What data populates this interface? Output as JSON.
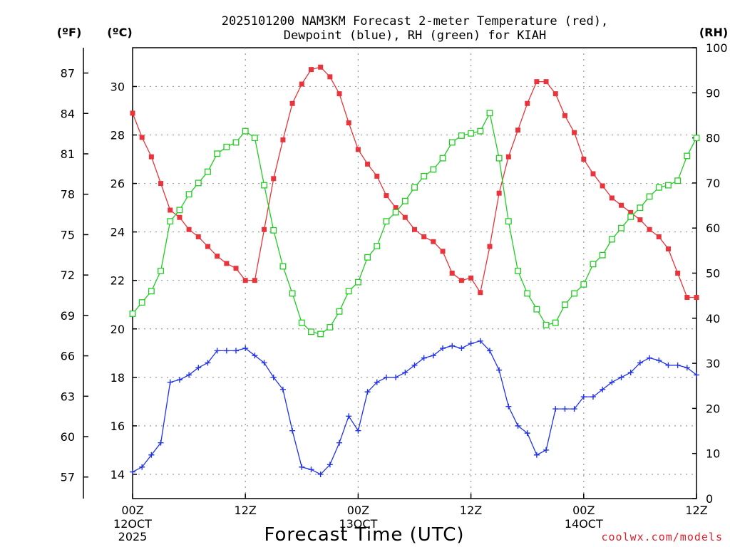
{
  "chart_data": {
    "type": "line",
    "title_line1": "2025101200 NAM3KM Forecast 2-meter Temperature (red),",
    "title_line2": "Dewpoint (blue), RH (green) for KIAH",
    "xlabel": "Forecast Time (UTC)",
    "credit": "coolwx.com/models",
    "units": {
      "fahrenheit": "(ºF)",
      "celsius": "(ºC)",
      "rh": "(RH)"
    },
    "x_range_hours": [
      0,
      60
    ],
    "celsius_range": [
      13.0,
      31.6
    ],
    "rh_range": [
      0,
      100
    ],
    "fahrenheit_ticks": [
      57,
      60,
      63,
      66,
      69,
      72,
      75,
      78,
      81,
      84,
      87
    ],
    "celsius_ticks": [
      14,
      16,
      18,
      20,
      22,
      24,
      26,
      28,
      30
    ],
    "rh_ticks": [
      0,
      10,
      20,
      30,
      40,
      50,
      60,
      70,
      80,
      90,
      100
    ],
    "x_ticks": [
      {
        "hour": 0,
        "label": "00Z",
        "sub1": "12OCT",
        "sub2": "2025"
      },
      {
        "hour": 12,
        "label": "12Z",
        "sub1": "",
        "sub2": ""
      },
      {
        "hour": 24,
        "label": "00Z",
        "sub1": "13OCT",
        "sub2": ""
      },
      {
        "hour": 36,
        "label": "12Z",
        "sub1": "",
        "sub2": ""
      },
      {
        "hour": 48,
        "label": "00Z",
        "sub1": "14OCT",
        "sub2": ""
      },
      {
        "hour": 60,
        "label": "12Z",
        "sub1": "",
        "sub2": ""
      }
    ],
    "colors": {
      "temperature": "#e8343a",
      "dewpoint": "#2233e8",
      "rh": "#22cc22",
      "grid": "#999999"
    },
    "series": [
      {
        "name": "Temperature",
        "units": "C",
        "color": "#e8343a",
        "marker": "filled-square",
        "values": [
          28.9,
          27.9,
          27.1,
          26.0,
          24.9,
          24.6,
          24.1,
          23.8,
          23.4,
          23.0,
          22.7,
          22.5,
          22.0,
          22.0,
          24.1,
          26.2,
          27.8,
          29.3,
          30.1,
          30.7,
          30.8,
          30.4,
          29.7,
          28.5,
          27.4,
          26.8,
          26.3,
          25.5,
          25.0,
          24.6,
          24.1,
          23.8,
          23.6,
          23.2,
          22.3,
          22.0,
          22.1,
          21.5,
          23.4,
          25.6,
          27.1,
          28.2,
          29.3,
          30.2,
          30.2,
          29.7,
          28.8,
          28.1,
          27.0,
          26.4,
          25.9,
          25.4,
          25.1,
          24.8,
          24.5,
          24.1,
          23.8,
          23.3,
          22.3,
          21.3,
          21.3
        ]
      },
      {
        "name": "Dewpoint",
        "units": "C",
        "color": "#2233e8",
        "marker": "plus",
        "values": [
          14.1,
          14.3,
          14.8,
          15.3,
          17.8,
          17.9,
          18.1,
          18.4,
          18.6,
          19.1,
          19.1,
          19.1,
          19.2,
          18.9,
          18.6,
          18.0,
          17.5,
          15.8,
          14.3,
          14.2,
          14.0,
          14.4,
          15.3,
          16.4,
          15.8,
          17.4,
          17.8,
          18.0,
          18.0,
          18.2,
          18.5,
          18.8,
          18.9,
          19.2,
          19.3,
          19.2,
          19.4,
          19.5,
          19.1,
          18.3,
          16.8,
          16.0,
          15.7,
          14.8,
          15.0,
          16.7,
          16.7,
          16.7,
          17.2,
          17.2,
          17.5,
          17.8,
          18.0,
          18.2,
          18.6,
          18.8,
          18.7,
          18.5,
          18.5,
          18.4,
          18.1
        ]
      },
      {
        "name": "RH",
        "units": "%",
        "color": "#22cc22",
        "marker": "open-square",
        "values": [
          41,
          43.5,
          46,
          50.5,
          61.5,
          64,
          67.5,
          70,
          72.5,
          76.5,
          78,
          79,
          81.5,
          80,
          69.5,
          59.5,
          51.5,
          45.5,
          39,
          37,
          36.5,
          38,
          41.5,
          46,
          48,
          53.5,
          56,
          61.5,
          63.5,
          66,
          69,
          71.5,
          73,
          75.5,
          79,
          80.5,
          81,
          81.5,
          85.5,
          75.5,
          61.5,
          50.5,
          45.5,
          42,
          38.5,
          39,
          43,
          45.5,
          47.5,
          52,
          54,
          57.5,
          60,
          62.5,
          64.5,
          67,
          69,
          69.5,
          70.5,
          76,
          80
        ]
      }
    ]
  }
}
